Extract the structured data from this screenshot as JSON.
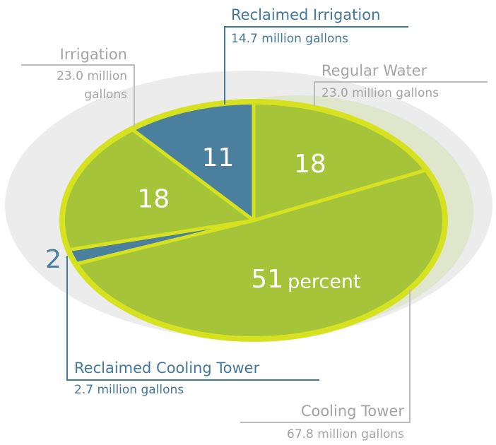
{
  "chart_data": {
    "type": "pie",
    "categories": [
      "Regular Water",
      "Cooling Tower",
      "Reclaimed Cooling Tower",
      "Irrigation",
      "Reclaimed Irrigation"
    ],
    "values": [
      18,
      51,
      2,
      18,
      11
    ],
    "details": [
      "23.0 million gallons",
      "67.8 million gallons",
      "2.7 million gallons",
      "23.0 million gallons",
      "14.7 million gallons"
    ],
    "colors": [
      "#a6c43a",
      "#a6c43a",
      "#4a7f9e",
      "#a6c43a",
      "#4a7f9e"
    ],
    "value_unit": "percent"
  }
}
